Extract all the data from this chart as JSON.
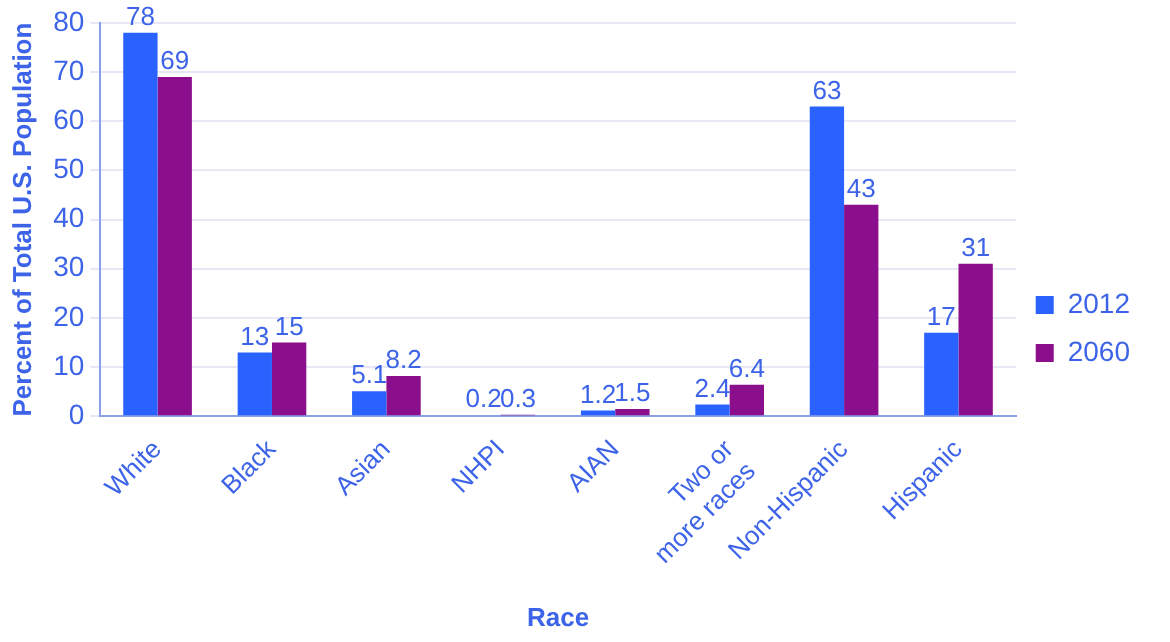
{
  "chart_data": {
    "type": "bar",
    "xlabel": "Race",
    "ylabel": "Percent of Total U.S. Population",
    "categories": [
      "White",
      "Black",
      "Asian",
      "NHPI",
      "AIAN",
      "Two or more races",
      "Non-Hispanic",
      "Hispanic"
    ],
    "series": [
      {
        "name": "2012",
        "color": "#2962ff",
        "values": [
          78,
          13,
          5.1,
          0.2,
          1.2,
          2.4,
          63,
          17
        ]
      },
      {
        "name": "2060",
        "color": "#8b0f8c",
        "values": [
          69,
          15,
          8.2,
          0.3,
          1.5,
          6.4,
          43,
          31
        ]
      }
    ],
    "ylim": [
      0,
      80
    ],
    "yticks": [
      0,
      10,
      20,
      30,
      40,
      50,
      60,
      70,
      80
    ],
    "grid": "y",
    "legend": "right",
    "data_labels": true
  }
}
